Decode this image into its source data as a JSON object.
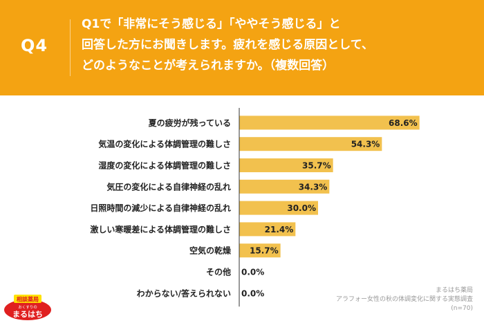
{
  "header": {
    "q_label": "Q4",
    "question_lines": [
      "Q1で「非常にそう感じる」「ややそう感じる」と",
      "回答した方にお聞きします。疲れを感じる原因として、",
      "どのようなことが考えられますか。（複数回答）"
    ]
  },
  "colors": {
    "background": "#f4a312",
    "bar": "#f2c14e",
    "axis": "#333333"
  },
  "chart_data": {
    "type": "bar",
    "orientation": "horizontal",
    "categories": [
      "夏の疲労が残っている",
      "気温の変化による体調管理の難しさ",
      "湿度の変化による体調管理の難しさ",
      "気圧の変化による自律神経の乱れ",
      "日照時間の減少による自律神経の乱れ",
      "激しい寒暖差による体調管理の難しさ",
      "空気の乾燥",
      "その他",
      "わからない/答えられない"
    ],
    "values": [
      68.6,
      54.3,
      35.7,
      34.3,
      30.0,
      21.4,
      15.7,
      0.0,
      0.0
    ],
    "value_labels": [
      "68.6%",
      "54.3%",
      "35.7%",
      "34.3%",
      "30.0%",
      "21.4%",
      "15.7%",
      "0.0%",
      "0.0%"
    ],
    "xlim": [
      0,
      100
    ]
  },
  "footnote": {
    "source": "まるはち薬局",
    "survey": "アラフォー女性の秋の体調変化に関する実態調査",
    "n": "(n=70)"
  },
  "logo": {
    "top_text": "相談薬局",
    "sub_text": "おくすりの",
    "main_text": "まるはち"
  }
}
